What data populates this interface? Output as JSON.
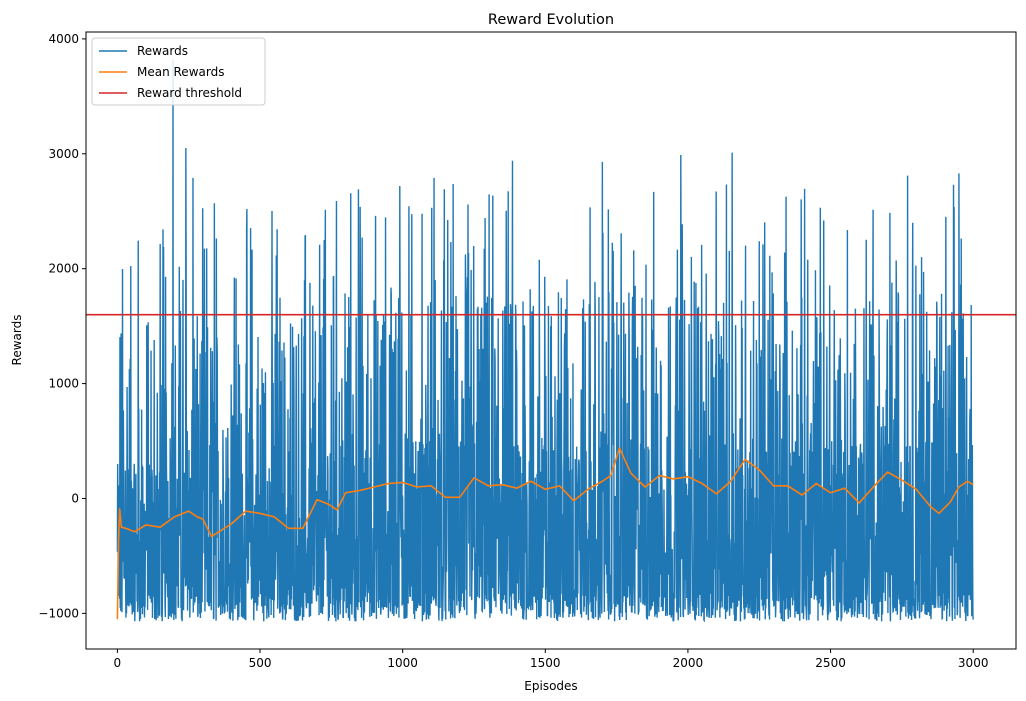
{
  "chart_data": {
    "type": "line",
    "title": "Reward Evolution",
    "xlabel": "Episodes",
    "ylabel": "Rewards",
    "xlim": [
      -110,
      3150
    ],
    "ylim": [
      -1310,
      4060
    ],
    "xticks": [
      0,
      500,
      1000,
      1500,
      2000,
      2500,
      3000
    ],
    "yticks": [
      -1000,
      0,
      1000,
      2000,
      3000,
      4000
    ],
    "xtick_labels": [
      "0",
      "500",
      "1000",
      "1500",
      "2000",
      "2500",
      "3000"
    ],
    "ytick_labels": [
      "−1000",
      "0",
      "1000",
      "2000",
      "3000",
      "4000"
    ],
    "grid": false,
    "legend_position": "top-left",
    "series": [
      {
        "name": "Rewards",
        "color": "#1f77b4",
        "episodes": 3000,
        "min": -1070,
        "max": 3820,
        "notable_peaks": [
          {
            "x": 195,
            "y": 3820
          },
          {
            "x": 240,
            "y": 3050
          },
          {
            "x": 265,
            "y": 2790
          },
          {
            "x": 340,
            "y": 2570
          },
          {
            "x": 725,
            "y": 2250
          },
          {
            "x": 845,
            "y": 2690
          },
          {
            "x": 990,
            "y": 2720
          },
          {
            "x": 1110,
            "y": 2790
          },
          {
            "x": 1385,
            "y": 2940
          },
          {
            "x": 1700,
            "y": 2930
          },
          {
            "x": 1975,
            "y": 2990
          },
          {
            "x": 2155,
            "y": 3010
          },
          {
            "x": 2770,
            "y": 2810
          },
          {
            "x": 2950,
            "y": 2830
          }
        ]
      },
      {
        "name": "Mean Rewards",
        "color": "#ff7f0e",
        "points": [
          [
            0,
            -1050
          ],
          [
            4,
            -380
          ],
          [
            8,
            -90
          ],
          [
            14,
            -250
          ],
          [
            30,
            -260
          ],
          [
            60,
            -290
          ],
          [
            100,
            -230
          ],
          [
            150,
            -250
          ],
          [
            200,
            -160
          ],
          [
            250,
            -110
          ],
          [
            280,
            -160
          ],
          [
            300,
            -180
          ],
          [
            330,
            -330
          ],
          [
            350,
            -300
          ],
          [
            400,
            -220
          ],
          [
            450,
            -110
          ],
          [
            500,
            -130
          ],
          [
            550,
            -160
          ],
          [
            600,
            -260
          ],
          [
            650,
            -260
          ],
          [
            700,
            -10
          ],
          [
            740,
            -50
          ],
          [
            770,
            -100
          ],
          [
            800,
            50
          ],
          [
            850,
            70
          ],
          [
            900,
            100
          ],
          [
            950,
            130
          ],
          [
            1000,
            140
          ],
          [
            1050,
            100
          ],
          [
            1100,
            110
          ],
          [
            1150,
            10
          ],
          [
            1200,
            10
          ],
          [
            1250,
            180
          ],
          [
            1300,
            110
          ],
          [
            1350,
            120
          ],
          [
            1400,
            90
          ],
          [
            1450,
            150
          ],
          [
            1500,
            80
          ],
          [
            1550,
            110
          ],
          [
            1600,
            -20
          ],
          [
            1650,
            80
          ],
          [
            1700,
            150
          ],
          [
            1730,
            200
          ],
          [
            1760,
            440
          ],
          [
            1800,
            220
          ],
          [
            1850,
            100
          ],
          [
            1900,
            200
          ],
          [
            1950,
            170
          ],
          [
            2000,
            190
          ],
          [
            2050,
            130
          ],
          [
            2100,
            40
          ],
          [
            2150,
            150
          ],
          [
            2200,
            340
          ],
          [
            2250,
            250
          ],
          [
            2300,
            110
          ],
          [
            2350,
            110
          ],
          [
            2400,
            30
          ],
          [
            2450,
            130
          ],
          [
            2500,
            50
          ],
          [
            2550,
            90
          ],
          [
            2600,
            -40
          ],
          [
            2650,
            100
          ],
          [
            2700,
            230
          ],
          [
            2750,
            160
          ],
          [
            2800,
            80
          ],
          [
            2850,
            -70
          ],
          [
            2880,
            -130
          ],
          [
            2920,
            -30
          ],
          [
            2950,
            100
          ],
          [
            2980,
            150
          ],
          [
            3000,
            120
          ]
        ]
      },
      {
        "name": "Reward threshold",
        "color": "#d62728",
        "y": 1600
      }
    ]
  }
}
